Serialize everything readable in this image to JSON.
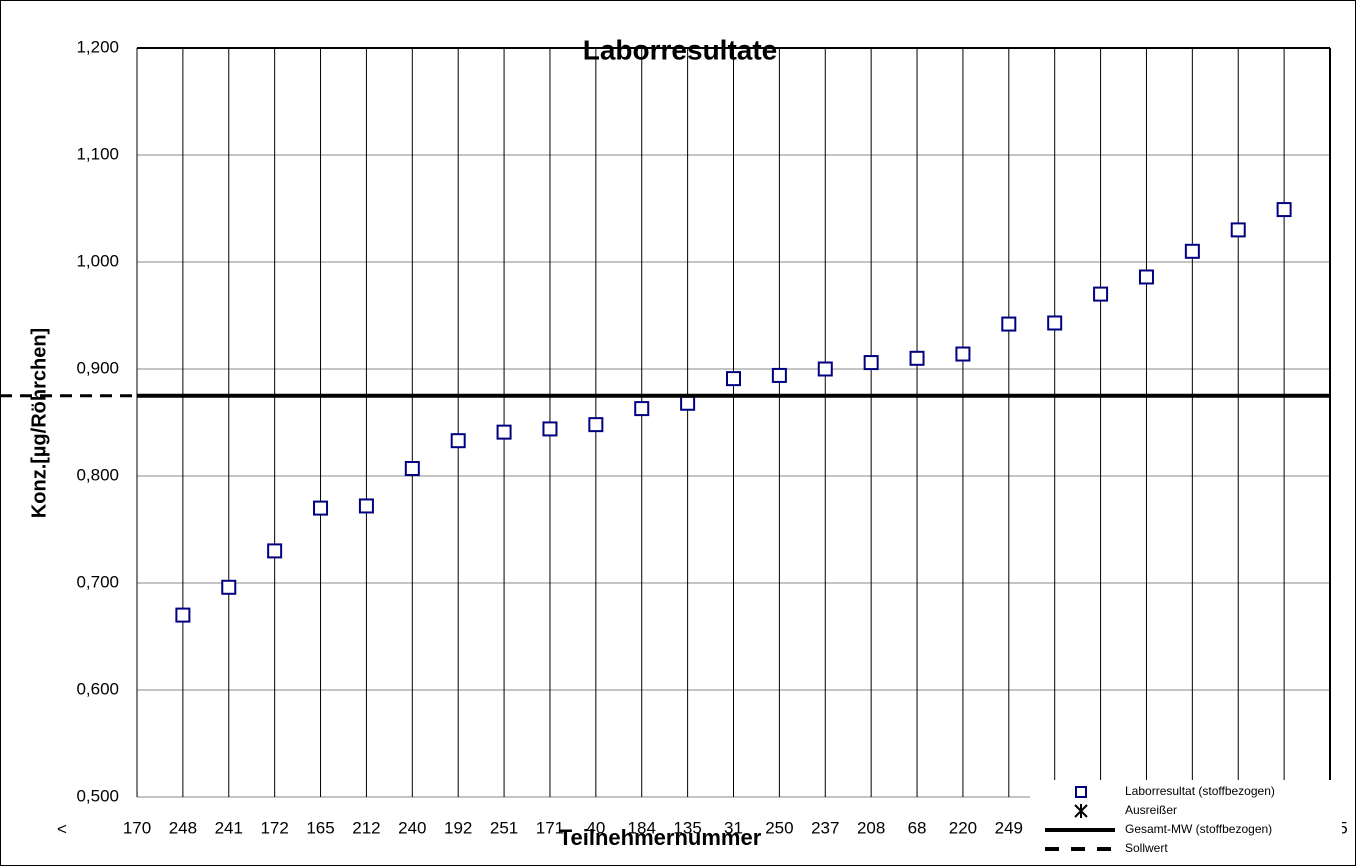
{
  "chart_data": {
    "type": "scatter",
    "title": "Laborresultate",
    "xlabel": "Teilnehmernummer",
    "ylabel": "Konz.[µg/Röhrchen]",
    "annotations": [
      "<"
    ],
    "categories": [
      "170",
      "248",
      "241",
      "172",
      "165",
      "212",
      "240",
      "192",
      "251",
      "171",
      "40",
      "184",
      "135",
      "31",
      "250",
      "237",
      "208",
      "68",
      "220",
      "249",
      null,
      null,
      null,
      null,
      null,
      null,
      "5"
    ],
    "series": [
      {
        "name": "Laborresultat (stoffbezogen)",
        "color": "#000080",
        "marker": "square",
        "values": [
          null,
          0.67,
          0.696,
          0.73,
          0.77,
          0.772,
          0.807,
          0.833,
          0.841,
          0.844,
          0.848,
          0.863,
          0.868,
          0.891,
          0.894,
          0.9,
          0.906,
          0.91,
          0.914,
          0.942,
          0.943,
          0.97,
          0.986,
          1.01,
          1.03,
          1.049,
          null
        ]
      },
      {
        "name": "Ausreißer",
        "color": "#000000",
        "marker": "star"
      },
      {
        "name": "Gesamt-MW (stoffbezogen)",
        "color": "#000000",
        "line": "solid",
        "value": 0.875
      },
      {
        "name": "Sollwert",
        "color": "#000000",
        "line": "dashed",
        "value": 0.875
      }
    ],
    "ylim": [
      0.5,
      1.2
    ],
    "yticks": [
      {
        "value": 0.5,
        "label": "0,500"
      },
      {
        "value": 0.6,
        "label": "0,600"
      },
      {
        "value": 0.7,
        "label": "0,700"
      },
      {
        "value": 0.8,
        "label": "0,800"
      },
      {
        "value": 0.9,
        "label": "0,900"
      },
      {
        "value": 1.0,
        "label": "1,000"
      },
      {
        "value": 1.1,
        "label": "1,100"
      },
      {
        "value": 1.2,
        "label": "1,200"
      }
    ],
    "grid": true,
    "legend": "lower right"
  }
}
